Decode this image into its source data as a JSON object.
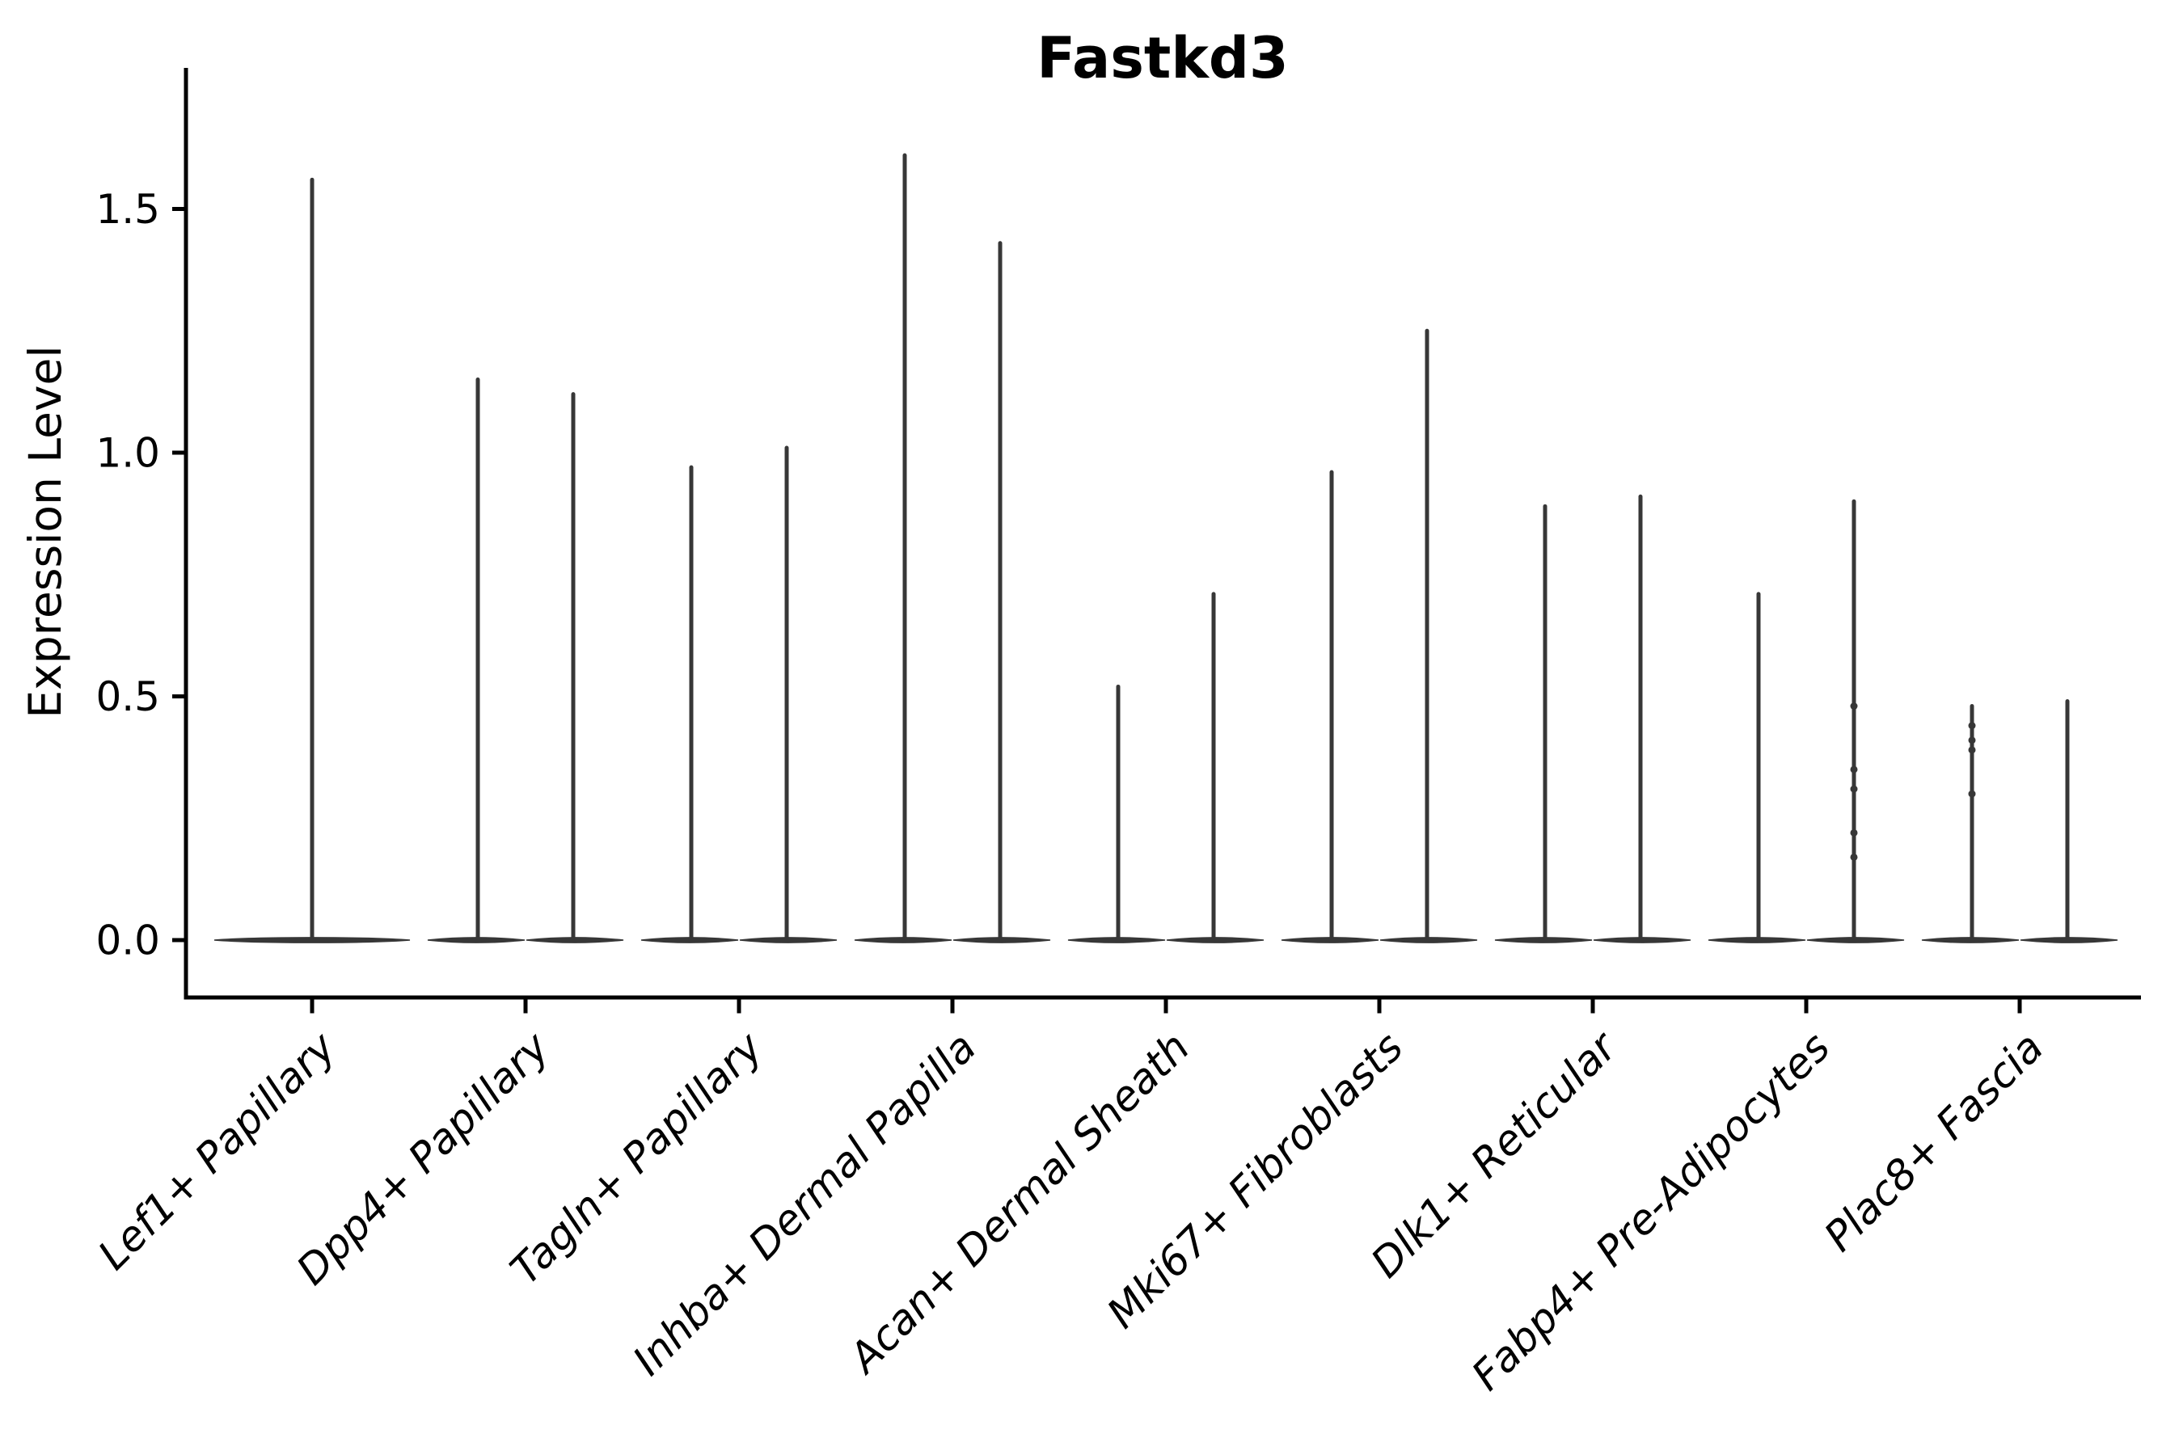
{
  "chart_data": {
    "type": "violin",
    "title": "Fastkd3",
    "ylabel": "Expression Level",
    "xlabel": "",
    "grid": false,
    "legend": "none",
    "ytick_labels": [
      "0.0",
      "0.5",
      "1.0",
      "1.5"
    ],
    "ytick_values": [
      0.0,
      0.5,
      1.0,
      1.5
    ],
    "ylim": [
      -0.08,
      1.79
    ],
    "categories": [
      "Lef1+ Papillary",
      "Dpp4+ Papillary",
      "Tagln+ Papillary",
      "Inhba+ Dermal Papilla",
      "Acan+ Dermal Sheath",
      "Mki67+ Fibroblasts",
      "Dlk1+ Reticular",
      "Fabp4+ Pre-Adipocytes",
      "Plac8+ Fascia"
    ],
    "groups": [
      {
        "label": "Lef1+ Papillary",
        "violins": [
          {
            "position": "center",
            "max": 1.56,
            "dots": []
          }
        ]
      },
      {
        "label": "Dpp4+ Papillary",
        "violins": [
          {
            "position": "left",
            "max": 1.15,
            "dots": []
          },
          {
            "position": "right",
            "max": 1.12,
            "dots": []
          }
        ]
      },
      {
        "label": "Tagln+ Papillary",
        "violins": [
          {
            "position": "left",
            "max": 0.97,
            "dots": []
          },
          {
            "position": "right",
            "max": 1.01,
            "dots": []
          }
        ]
      },
      {
        "label": "Inhba+ Dermal Papilla",
        "violins": [
          {
            "position": "left",
            "max": 1.61,
            "dots": []
          },
          {
            "position": "right",
            "max": 1.43,
            "dots": []
          }
        ]
      },
      {
        "label": "Acan+ Dermal Sheath",
        "violins": [
          {
            "position": "left",
            "max": 0.52,
            "dots": []
          },
          {
            "position": "right",
            "max": 0.71,
            "dots": []
          }
        ]
      },
      {
        "label": "Mki67+ Fibroblasts",
        "violins": [
          {
            "position": "left",
            "max": 0.96,
            "dots": []
          },
          {
            "position": "right",
            "max": 1.25,
            "dots": []
          }
        ]
      },
      {
        "label": "Dlk1+ Reticular",
        "violins": [
          {
            "position": "left",
            "max": 0.89,
            "dots": []
          },
          {
            "position": "right",
            "max": 0.91,
            "dots": []
          }
        ]
      },
      {
        "label": "Fabp4+ Pre-Adipocytes",
        "violins": [
          {
            "position": "left",
            "max": 0.71,
            "dots": []
          },
          {
            "position": "right",
            "max": 0.9,
            "dots": [
              0.48,
              0.35,
              0.31,
              0.22,
              0.17
            ]
          }
        ]
      },
      {
        "label": "Plac8+ Fascia",
        "violins": [
          {
            "position": "left",
            "max": 0.48,
            "dots": [
              0.44,
              0.41,
              0.39,
              0.3
            ]
          },
          {
            "position": "right",
            "max": 0.49,
            "dots": []
          }
        ]
      }
    ],
    "colors": {
      "violin": "#373737",
      "spine": "#000000",
      "text": "#000000",
      "background": "#ffffff"
    }
  }
}
